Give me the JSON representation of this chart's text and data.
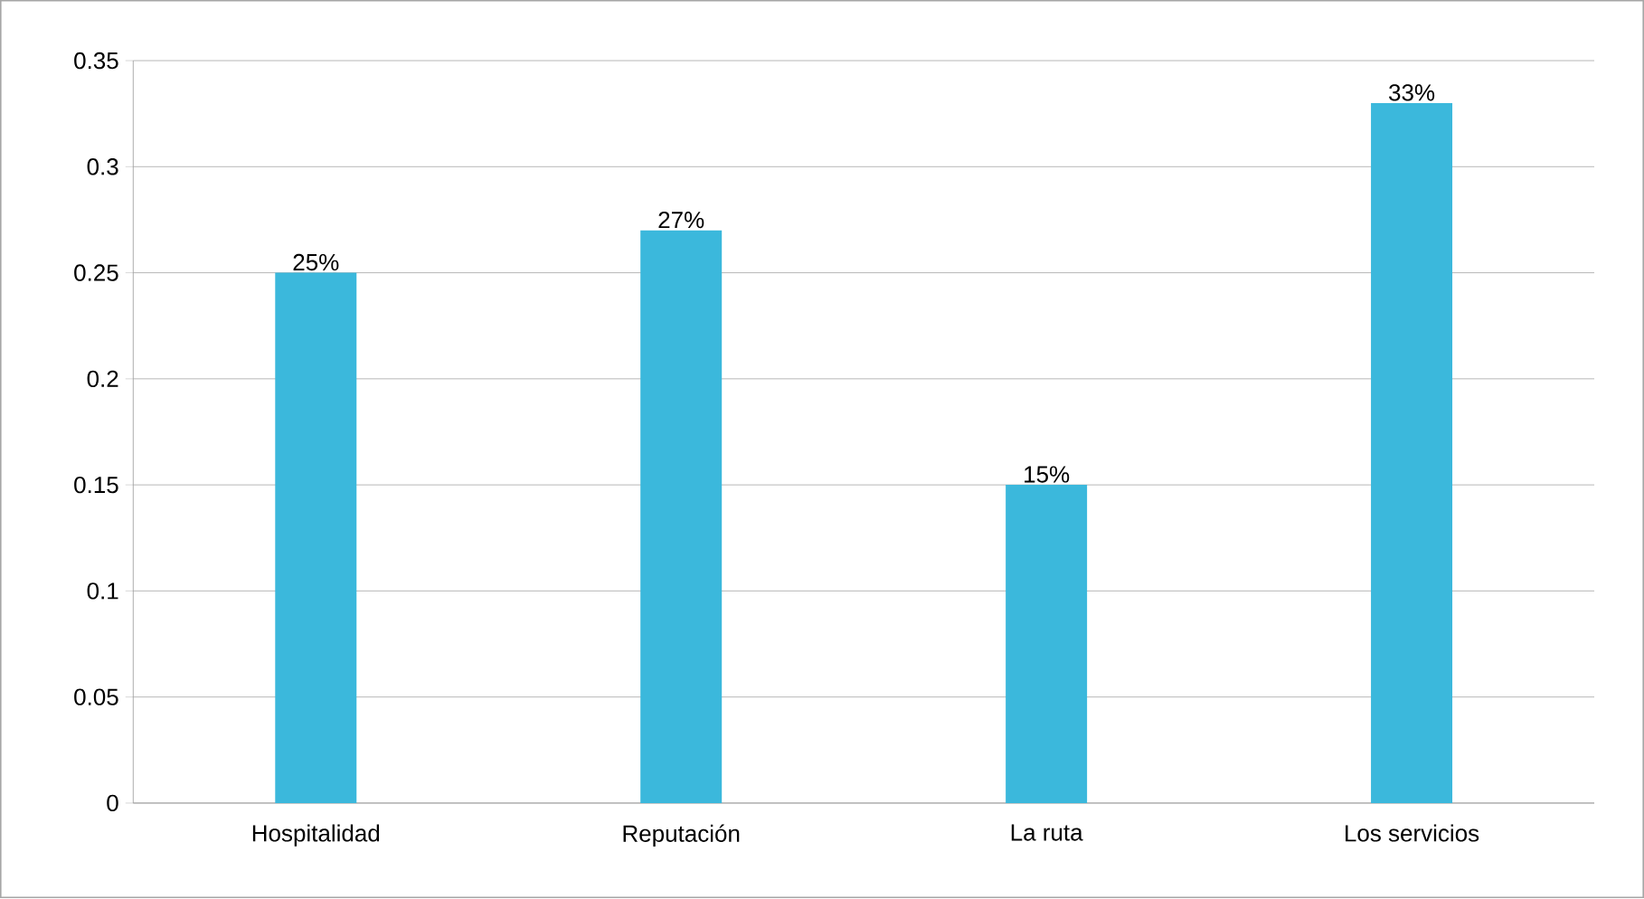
{
  "chart_data": {
    "type": "bar",
    "categories": [
      "Hospitalidad",
      "Reputación",
      "La ruta",
      "Los servicios"
    ],
    "values": [
      0.25,
      0.27,
      0.15,
      0.33
    ],
    "value_labels": [
      "25%",
      "27%",
      "15%",
      "33%"
    ],
    "color": "#3bb8dc",
    "ylim": [
      0,
      0.35
    ],
    "yticks": [
      0,
      0.05,
      0.1,
      0.15,
      0.2,
      0.25,
      0.3,
      0.35
    ],
    "grid": "y"
  }
}
